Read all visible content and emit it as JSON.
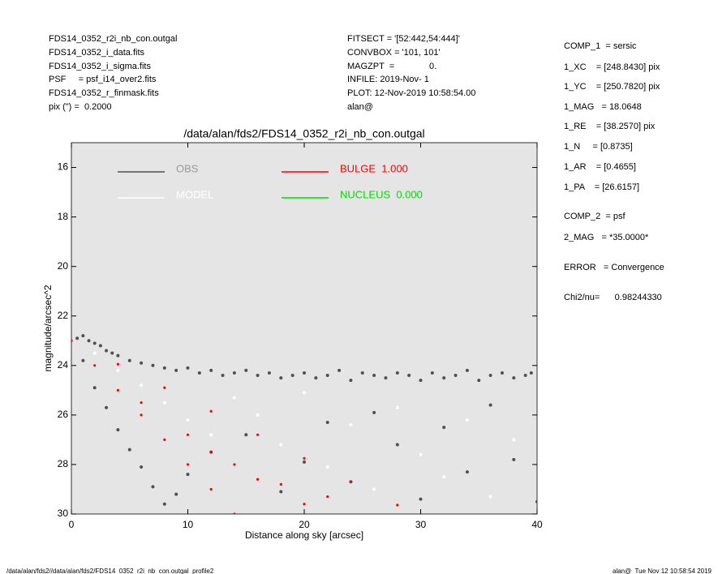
{
  "header": {
    "left": [
      "FDS14_0352_r2i_nb_con.outgal",
      "FDS14_0352_i_data.fits",
      "FDS14_0352_i_sigma.fits",
      "PSF     = psf_i14_over2.fits",
      "FDS14_0352_r_finmask.fits",
      "pix (\") =  0.2000"
    ],
    "middle": [
      "FITSECT = '[52:442,54:444]'",
      "CONVBOX = '101, 101'",
      "MAGZPT  =              0.",
      "INFILE: 2019-Nov- 1",
      "PLOT: 12-Nov-2019 10:58:54.00",
      "alan@"
    ],
    "right": [
      "COMP_1  = sersic",
      "1_XC    = [248.8430] pix",
      "1_YC    = [250.7820] pix",
      "1_MAG   = 18.0648",
      "1_RE    = [38.2570] pix",
      "1_N     = [0.8735]",
      "1_AR    = [0.4655]",
      "1_PA    = [26.6157]",
      "COMP_2  = psf",
      "2_MAG   = *35.0000*",
      "ERROR   = Convergence",
      "Chi2/nu=      0.98244330"
    ]
  },
  "footer": {
    "left": "/data/alan/fds2//data/alan/fds2/FDS14_0352_r2i_nb_con.outgal_profile2",
    "right": "alan@  Tue Nov 12 10:58:54 2019"
  },
  "chart_data": {
    "type": "scatter",
    "title": "/data/alan/fds2/FDS14_0352_r2i_nb_con.outgal",
    "x_label": "Distance along sky [arcsec]",
    "y_label": "magnitude/arcsec^2",
    "xlim": [
      0,
      40
    ],
    "ylim": [
      30,
      15
    ],
    "xticks": [
      0,
      10,
      20,
      30,
      40
    ],
    "yticks": [
      16,
      18,
      20,
      22,
      24,
      26,
      28,
      30
    ],
    "background": "#e5e5e5",
    "series": [
      {
        "name": "OBS",
        "color": "#505050",
        "x": [
          0.5,
          1,
          1.5,
          2,
          2.5,
          3,
          3.5,
          4,
          5,
          6,
          7,
          8,
          9,
          10,
          11,
          12,
          13,
          14,
          15,
          16,
          17,
          18,
          19,
          20,
          21,
          22,
          23,
          24,
          25,
          26,
          27,
          28,
          29,
          30,
          31,
          32,
          33,
          34,
          35,
          36,
          37,
          38,
          39,
          39.5,
          1,
          2,
          3,
          4,
          5,
          6,
          7,
          8,
          9,
          10,
          12,
          15,
          18,
          20,
          22,
          24,
          26,
          28,
          30,
          32,
          34,
          36,
          38,
          40
        ],
        "values": [
          22.9,
          22.8,
          23,
          23.1,
          23.2,
          23.4,
          23.5,
          23.6,
          23.8,
          23.9,
          24,
          24.1,
          24.2,
          24.1,
          24.3,
          24.2,
          24.4,
          24.3,
          24.2,
          24.4,
          24.3,
          24.5,
          24.4,
          24.3,
          24.5,
          24.4,
          24.2,
          24.6,
          24.3,
          24.4,
          24.5,
          24.3,
          24.4,
          24.6,
          24.3,
          24.5,
          24.4,
          24.2,
          24.6,
          24.4,
          24.3,
          24.5,
          24.4,
          24.3,
          23.8,
          24.9,
          25.7,
          26.6,
          27.4,
          28.1,
          28.9,
          29.6,
          29.2,
          28.4,
          27.5,
          26.8,
          29.1,
          27.9,
          26.3,
          28.7,
          25.9,
          27.2,
          29.4,
          26.5,
          28.3,
          25.6,
          27.8,
          29.5
        ]
      },
      {
        "name": "MODEL",
        "color": "#ffffff",
        "x": [
          2,
          4,
          6,
          8,
          10,
          12,
          14,
          16,
          18,
          20,
          22,
          24,
          26,
          28,
          30,
          32,
          34,
          36,
          38
        ],
        "values": [
          23.5,
          24.2,
          24.8,
          25.5,
          26.2,
          26.8,
          25.3,
          26,
          27.2,
          25.1,
          28.1,
          26.4,
          29,
          25.7,
          27.6,
          28.5,
          26.2,
          29.3,
          27
        ]
      },
      {
        "name": "BULGE  1.000",
        "color": "#ff0000",
        "x": [
          0,
          2,
          4,
          6,
          8,
          10,
          12,
          14,
          4,
          8,
          12,
          16,
          20,
          24,
          28,
          6,
          10,
          14,
          18,
          22,
          12,
          16,
          20
        ],
        "values": [
          23,
          24,
          25,
          26,
          27,
          28,
          29,
          30,
          23.95,
          24.9,
          25.85,
          26.8,
          27.75,
          28.7,
          29.64,
          25.5,
          26.8,
          28,
          28.8,
          29.3,
          27.5,
          28.6,
          29.6
        ]
      },
      {
        "name": "NUCLEUS  0.000",
        "color": "#00dd00",
        "x": [],
        "values": []
      }
    ]
  }
}
